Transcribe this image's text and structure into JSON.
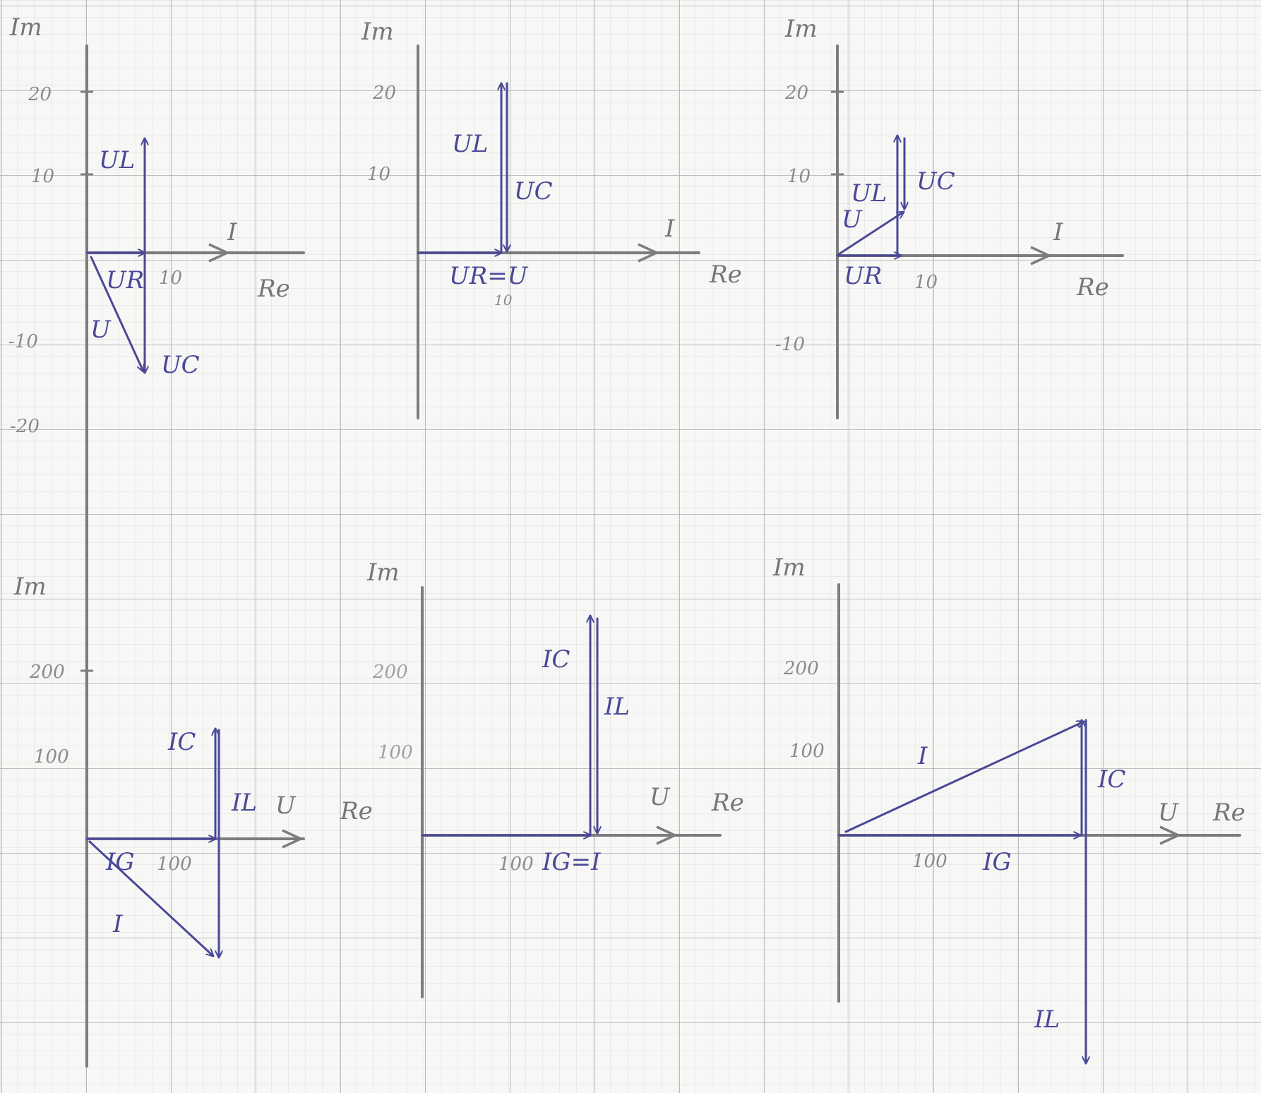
{
  "colors": {
    "paper": "#f7f7f5",
    "grid_minor": "#d9d9d9",
    "grid_major": "#a8a8a8",
    "pencil": "#7d7d7d",
    "ink": "#4a4898"
  },
  "diagrams": [
    {
      "id": "d1",
      "axis_labels": {
        "imag": "Im",
        "real": "Re",
        "ref": "I"
      },
      "ticks": {
        "y": [
          "20",
          "10",
          "-10",
          "-20"
        ],
        "x": [
          "10"
        ]
      },
      "vector_labels": {
        "UL": "UL",
        "UR": "UR",
        "U": "U",
        "UC": "UC"
      }
    },
    {
      "id": "d2",
      "axis_labels": {
        "imag": "Im",
        "real": "Re",
        "ref": "I"
      },
      "ticks": {
        "y": [
          "20",
          "10"
        ],
        "x": [
          "10"
        ]
      },
      "vector_labels": {
        "UL": "UL",
        "UC": "UC",
        "UR_eq_U": "UR=U"
      }
    },
    {
      "id": "d3",
      "axis_labels": {
        "imag": "Im",
        "real": "Re",
        "ref": "I"
      },
      "ticks": {
        "y": [
          "20",
          "10",
          "-10"
        ],
        "x": [
          "10"
        ]
      },
      "vector_labels": {
        "UL": "UL",
        "UC": "UC",
        "U": "U",
        "UR": "UR"
      }
    },
    {
      "id": "d4",
      "axis_labels": {
        "imag": "Im",
        "real": "Re",
        "ref": "U"
      },
      "ticks": {
        "y": [
          "200",
          "100"
        ],
        "x": [
          "100"
        ]
      },
      "vector_labels": {
        "IC": "IC",
        "IL": "IL",
        "IG": "IG",
        "I": "I"
      }
    },
    {
      "id": "d5",
      "axis_labels": {
        "imag": "Im",
        "real": "Re",
        "ref": "U"
      },
      "ticks": {
        "y": [
          "200",
          "100"
        ],
        "x": [
          "100"
        ]
      },
      "vector_labels": {
        "IC": "IC",
        "IL": "IL",
        "IG_eq_I": "IG=I"
      }
    },
    {
      "id": "d6",
      "axis_labels": {
        "imag": "Im",
        "real": "Re",
        "ref": "U"
      },
      "ticks": {
        "y": [
          "200",
          "100"
        ],
        "x": [
          "100"
        ]
      },
      "vector_labels": {
        "I": "I",
        "IC": "IC",
        "IG": "IG",
        "IL": "IL"
      }
    }
  ]
}
